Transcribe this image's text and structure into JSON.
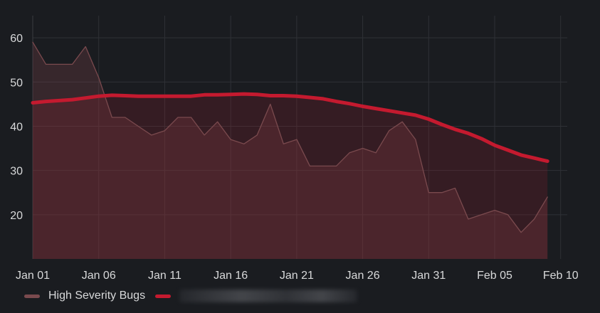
{
  "chart_data": {
    "type": "line",
    "x_tick_labels": [
      "Jan 01",
      "Jan 06",
      "Jan 11",
      "Jan 16",
      "Jan 21",
      "Jan 26",
      "Jan 31",
      "Feb 05",
      "Feb 10"
    ],
    "x_tick_days": [
      0,
      5,
      10,
      15,
      20,
      25,
      30,
      35,
      40
    ],
    "y_ticks": [
      20,
      30,
      40,
      50,
      60
    ],
    "ylim": [
      10,
      65
    ],
    "xlim_days": [
      0,
      40.5
    ],
    "grid": true,
    "legend_position": "bottom-left",
    "series": [
      {
        "name": "High Severity Bugs",
        "color": "#7a4a4e",
        "fill": true,
        "values": [
          59,
          54,
          54,
          54,
          58,
          51,
          42,
          42,
          40,
          38,
          39,
          42,
          42,
          38,
          41,
          37,
          36,
          38,
          45,
          36,
          37,
          31,
          31,
          31,
          34,
          35,
          34,
          39,
          41,
          37,
          25,
          25,
          26,
          19,
          20,
          21,
          20,
          16,
          19,
          24
        ]
      },
      {
        "name": "",
        "color": "#c41a2f",
        "fill": true,
        "values": [
          45.3,
          45.6,
          45.8,
          46.0,
          46.4,
          46.8,
          47.0,
          46.9,
          46.8,
          46.8,
          46.8,
          46.8,
          46.8,
          47.1,
          47.1,
          47.2,
          47.3,
          47.2,
          46.9,
          46.9,
          46.8,
          46.5,
          46.2,
          45.6,
          45.1,
          44.5,
          44.0,
          43.5,
          43.0,
          42.5,
          41.6,
          40.4,
          39.3,
          38.4,
          37.2,
          35.7,
          34.6,
          33.5,
          32.8,
          32.1
        ]
      }
    ]
  }
}
